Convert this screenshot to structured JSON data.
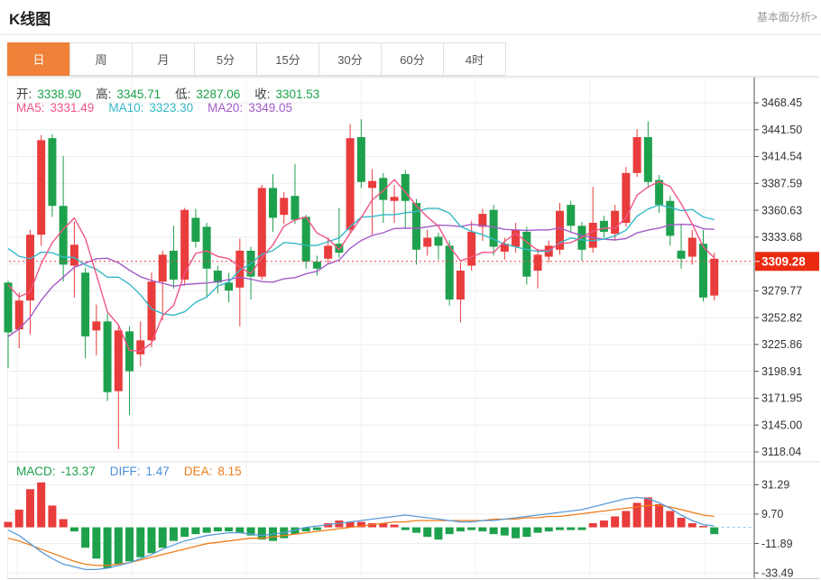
{
  "header": {
    "title": "K线图",
    "link": "基本面分析>"
  },
  "tabs": {
    "items": [
      "日",
      "周",
      "月",
      "5分",
      "15分",
      "30分",
      "60分",
      "4时"
    ],
    "active_index": 0
  },
  "info_bar": {
    "ohlc_segments": [
      {
        "text": "开:",
        "color": "#3c3c3c"
      },
      {
        "text": "3338.90",
        "color": "#1ba24a",
        "gap": true
      },
      {
        "text": "高:",
        "color": "#3c3c3c"
      },
      {
        "text": "3345.71",
        "color": "#1ba24a",
        "gap": true
      },
      {
        "text": "低:",
        "color": "#3c3c3c"
      },
      {
        "text": "3287.06",
        "color": "#1ba24a",
        "gap": true
      },
      {
        "text": "收:",
        "color": "#3c3c3c"
      },
      {
        "text": "3301.53",
        "color": "#1ba24a"
      }
    ],
    "ma_segments": [
      {
        "text": "MA5:",
        "color": "#ef5586"
      },
      {
        "text": "3331.49",
        "color": "#ef5586",
        "gap": true
      },
      {
        "text": "MA10:",
        "color": "#36b8c8"
      },
      {
        "text": "3323.30",
        "color": "#36b8c8",
        "gap": true
      },
      {
        "text": "MA20:",
        "color": "#a45bc8"
      },
      {
        "text": "3349.05",
        "color": "#a45bc8"
      }
    ],
    "macd_segments": [
      {
        "text": "MACD:",
        "color": "#1ba24a"
      },
      {
        "text": "-13.37",
        "color": "#1ba24a",
        "gap": true
      },
      {
        "text": "DIFF:",
        "color": "#4a90d9"
      },
      {
        "text": "1.47",
        "color": "#4a90d9",
        "gap": true
      },
      {
        "text": "DEA:",
        "color": "#f07d1a"
      },
      {
        "text": "8.15",
        "color": "#f07d1a"
      }
    ]
  },
  "colors": {
    "up": "#e93c3c",
    "down": "#1ea14d",
    "ma5": "#ef5586",
    "ma10": "#36b8c8",
    "ma20": "#a45bc8",
    "diff_line": "#5b9bd9",
    "dea_line": "#f07d1a",
    "price_line": "#e84040",
    "price_box_bg": "#ea2b10",
    "price_box_text": "#ffffff",
    "grid": "#ececec",
    "vgrid": "#f0f0f0",
    "axis": "#555555",
    "tick_text": "#333333",
    "tab_active_bg": "#ef8138",
    "tail_dash": "#86c3e6"
  },
  "axis": {
    "price_ticks": [
      {
        "v": 3468.45,
        "label": "3468.45"
      },
      {
        "v": 3441.5,
        "label": "3441.50"
      },
      {
        "v": 3414.54,
        "label": "3414.54"
      },
      {
        "v": 3387.59,
        "label": "3387.59"
      },
      {
        "v": 3360.63,
        "label": "3360.63"
      },
      {
        "v": 3333.68,
        "label": "3333.68"
      },
      {
        "v": 3279.77,
        "label": "3279.77"
      },
      {
        "v": 3252.82,
        "label": "3252.82"
      },
      {
        "v": 3225.86,
        "label": "3225.86"
      },
      {
        "v": 3198.91,
        "label": "3198.91"
      },
      {
        "v": 3171.95,
        "label": "3171.95"
      },
      {
        "v": 3145.0,
        "label": "3145.00"
      },
      {
        "v": 3118.04,
        "label": "3118.04"
      }
    ],
    "price_gridlines": [
      3468.45,
      3441.5,
      3414.54,
      3387.59,
      3360.63,
      3333.68,
      3306.73,
      3279.77,
      3252.82,
      3225.86,
      3198.91,
      3171.95,
      3145.0,
      3118.04
    ],
    "macd_ticks": [
      {
        "v": 31.29,
        "label": "31.29"
      },
      {
        "v": 9.7,
        "label": "9.70"
      },
      {
        "v": -11.89,
        "label": "-11.89"
      },
      {
        "v": -33.49,
        "label": "-33.49"
      }
    ],
    "price_line": {
      "v": 3309.28,
      "label": "3309.28"
    }
  },
  "chart_data": {
    "type": "candlestick+macd",
    "period": "日",
    "ohlc": {
      "open": 3338.9,
      "high": 3345.71,
      "low": 3287.06,
      "close": 3301.53
    },
    "ma_values": {
      "ma5": 3331.49,
      "ma10": 3323.3,
      "ma20": 3349.05
    },
    "macd_values": {
      "macd": -13.37,
      "diff": 1.47,
      "dea": 8.15
    },
    "last_price": 3309.28,
    "ylim": [
      3118.04,
      3468.45
    ],
    "macd_ylim": [
      -33.49,
      31.29
    ],
    "candles": [
      [
        3288,
        3290,
        3202,
        3238
      ],
      [
        3241,
        3278,
        3222,
        3270
      ],
      [
        3270,
        3341,
        3236,
        3336
      ],
      [
        3336,
        3436,
        3325,
        3431
      ],
      [
        3433,
        3437,
        3354,
        3365
      ],
      [
        3365,
        3415,
        3289,
        3306
      ],
      [
        3305,
        3349,
        3273,
        3326
      ],
      [
        3298,
        3303,
        3212,
        3234
      ],
      [
        3240,
        3266,
        3215,
        3249
      ],
      [
        3249,
        3257,
        3169,
        3178
      ],
      [
        3179,
        3244,
        3121,
        3240
      ],
      [
        3239,
        3244,
        3155,
        3199
      ],
      [
        3216,
        3249,
        3204,
        3230
      ],
      [
        3230,
        3298,
        3223,
        3289
      ],
      [
        3289,
        3320,
        3250,
        3316
      ],
      [
        3320,
        3345,
        3282,
        3291
      ],
      [
        3291,
        3363,
        3285,
        3361
      ],
      [
        3353,
        3362,
        3323,
        3329
      ],
      [
        3344,
        3348,
        3273,
        3302
      ],
      [
        3300,
        3305,
        3277,
        3288
      ],
      [
        3288,
        3298,
        3268,
        3280
      ],
      [
        3283,
        3332,
        3244,
        3320
      ],
      [
        3320,
        3324,
        3271,
        3294
      ],
      [
        3294,
        3386,
        3291,
        3383
      ],
      [
        3383,
        3397,
        3339,
        3353
      ],
      [
        3356,
        3379,
        3347,
        3373
      ],
      [
        3375,
        3407,
        3347,
        3351
      ],
      [
        3354,
        3356,
        3302,
        3309
      ],
      [
        3309,
        3315,
        3295,
        3302
      ],
      [
        3312,
        3333,
        3306,
        3325
      ],
      [
        3327,
        3363,
        3313,
        3318
      ],
      [
        3341,
        3447,
        3338,
        3433
      ],
      [
        3434,
        3452,
        3383,
        3389
      ],
      [
        3383,
        3402,
        3336,
        3390
      ],
      [
        3393,
        3398,
        3348,
        3371
      ],
      [
        3370,
        3386,
        3348,
        3374
      ],
      [
        3397,
        3401,
        3342,
        3370
      ],
      [
        3368,
        3372,
        3306,
        3321
      ],
      [
        3324,
        3341,
        3315,
        3333
      ],
      [
        3334,
        3338,
        3311,
        3325
      ],
      [
        3325,
        3330,
        3265,
        3271
      ],
      [
        3271,
        3308,
        3248,
        3300
      ],
      [
        3305,
        3350,
        3300,
        3339
      ],
      [
        3344,
        3362,
        3330,
        3357
      ],
      [
        3361,
        3366,
        3315,
        3324
      ],
      [
        3319,
        3333,
        3311,
        3327
      ],
      [
        3324,
        3348,
        3318,
        3341
      ],
      [
        3339,
        3344,
        3286,
        3294
      ],
      [
        3300,
        3322,
        3282,
        3316
      ],
      [
        3314,
        3330,
        3308,
        3325
      ],
      [
        3321,
        3368,
        3316,
        3360
      ],
      [
        3366,
        3370,
        3338,
        3345
      ],
      [
        3345,
        3349,
        3310,
        3321
      ],
      [
        3323,
        3384,
        3318,
        3348
      ],
      [
        3350,
        3355,
        3333,
        3339
      ],
      [
        3337,
        3366,
        3331,
        3360
      ],
      [
        3348,
        3404,
        3344,
        3398
      ],
      [
        3398,
        3442,
        3394,
        3434
      ],
      [
        3434,
        3450,
        3383,
        3389
      ],
      [
        3391,
        3396,
        3358,
        3366
      ],
      [
        3370,
        3375,
        3325,
        3335
      ],
      [
        3320,
        3347,
        3302,
        3312
      ],
      [
        3314,
        3341,
        3306,
        3333
      ],
      [
        3327,
        3341,
        3269,
        3273
      ],
      [
        3275,
        3318,
        3270,
        3312
      ]
    ],
    "ma_seed_closes": [
      3150,
      3120,
      3100,
      3090,
      3095,
      3110,
      3130,
      3150,
      3160,
      3170,
      3330,
      3350,
      3360,
      3365,
      3370,
      3350,
      3330,
      3310,
      3290,
      3260
    ],
    "macd": {
      "hist": [
        4,
        13,
        28,
        33,
        16,
        6,
        -3,
        -15,
        -23,
        -30,
        -27,
        -25,
        -22,
        -19,
        -15,
        -10,
        -7,
        -5,
        -4,
        -3,
        -3,
        -4,
        -6,
        -9,
        -10,
        -8,
        -5,
        -3,
        -2,
        3,
        5,
        4,
        4,
        3,
        3,
        2,
        -2,
        -4,
        -7,
        -9,
        -5,
        -3,
        -2,
        -3,
        -5,
        -6,
        -8,
        -7,
        -4,
        -3,
        -2,
        -2,
        -2,
        3,
        5,
        8,
        12,
        18,
        22,
        17,
        12,
        7,
        3,
        1,
        -5
      ],
      "diff": [
        -2,
        -6,
        -12,
        -18,
        -23,
        -27,
        -29,
        -31,
        -31,
        -30,
        -28,
        -26,
        -23,
        -20,
        -16,
        -13,
        -10,
        -8,
        -6,
        -5,
        -4,
        -4,
        -5,
        -6,
        -5,
        -4,
        -2,
        0,
        1,
        2,
        3,
        4,
        5,
        6,
        7,
        8,
        9,
        8,
        7,
        6,
        5,
        4,
        4,
        5,
        5,
        6,
        7,
        8,
        9,
        10,
        11,
        12,
        13,
        15,
        17,
        19,
        21,
        22,
        21,
        18,
        14,
        9,
        5,
        2,
        1
      ],
      "dea": [
        -8,
        -10,
        -13,
        -16,
        -19,
        -22,
        -25,
        -27,
        -28,
        -28,
        -27,
        -26,
        -24,
        -22,
        -20,
        -18,
        -16,
        -14,
        -12,
        -11,
        -10,
        -9,
        -8,
        -8,
        -7,
        -6,
        -5,
        -4,
        -3,
        -2,
        -1,
        0,
        1,
        2,
        3,
        4,
        4,
        5,
        5,
        5,
        5,
        5,
        5,
        5,
        6,
        6,
        6,
        7,
        7,
        8,
        8,
        9,
        10,
        11,
        12,
        13,
        14,
        15,
        16,
        16,
        15,
        13,
        11,
        9,
        8
      ]
    }
  }
}
